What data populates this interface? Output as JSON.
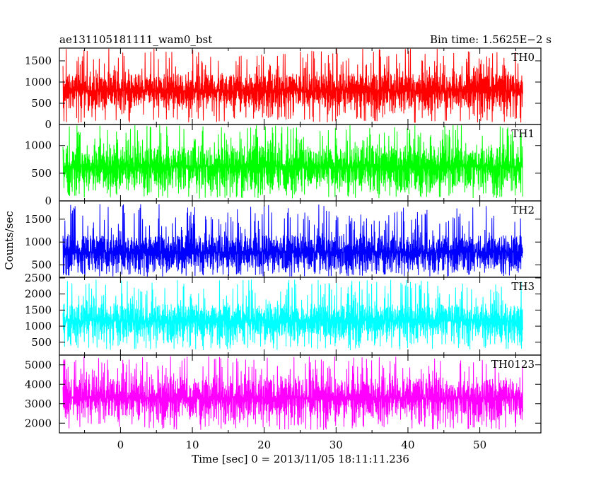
{
  "header": {
    "left": "ae131105181111_wam0_bst",
    "right": "Bin time: 1.5625E−2 s"
  },
  "chart_data": {
    "type": "line",
    "xlabel": "Time [sec] 0 = 2013/11/05 18:11:11.236",
    "ylabel": "Counts/sec",
    "xlim": [
      -8.5,
      58.5
    ],
    "x_ticks": [
      0,
      10,
      20,
      30,
      40,
      50
    ],
    "x_data_range": [
      -8.0,
      56.0
    ],
    "panels": [
      {
        "name": "TH0",
        "color": "#ff0000",
        "ylim": [
          0,
          1800
        ],
        "y_ticks": [
          0,
          500,
          1000,
          1500
        ],
        "band": [
          380,
          1200
        ],
        "peak_range": [
          1200,
          1800
        ],
        "trough_range": [
          40,
          380
        ],
        "mean": 800
      },
      {
        "name": "TH1",
        "color": "#00ff00",
        "ylim": [
          0,
          1380
        ],
        "y_ticks": [
          0,
          500,
          1000
        ],
        "band": [
          240,
          1000
        ],
        "peak_range": [
          1000,
          1380
        ],
        "trough_range": [
          40,
          240
        ],
        "mean": 620
      },
      {
        "name": "TH2",
        "color": "#0000ff",
        "ylim": [
          230,
          1900
        ],
        "y_ticks": [
          500,
          1000,
          1500
        ],
        "band": [
          400,
          1150
        ],
        "peak_range": [
          1150,
          1850
        ],
        "trough_range": [
          240,
          400
        ],
        "mean": 780
      },
      {
        "name": "TH3",
        "color": "#00ffff",
        "ylim": [
          100,
          2520
        ],
        "y_ticks": [
          500,
          1000,
          1500,
          2000,
          2500
        ],
        "band": [
          650,
          1700
        ],
        "peak_range": [
          1700,
          2450
        ],
        "trough_range": [
          250,
          650
        ],
        "mean": 1170
      },
      {
        "name": "TH0123",
        "color": "#ff00ff",
        "ylim": [
          1500,
          5500
        ],
        "y_ticks": [
          2000,
          3000,
          4000,
          5000
        ],
        "band": [
          2300,
          4300
        ],
        "peak_range": [
          4300,
          5450
        ],
        "trough_range": [
          1650,
          2300
        ],
        "mean": 3300
      }
    ]
  }
}
